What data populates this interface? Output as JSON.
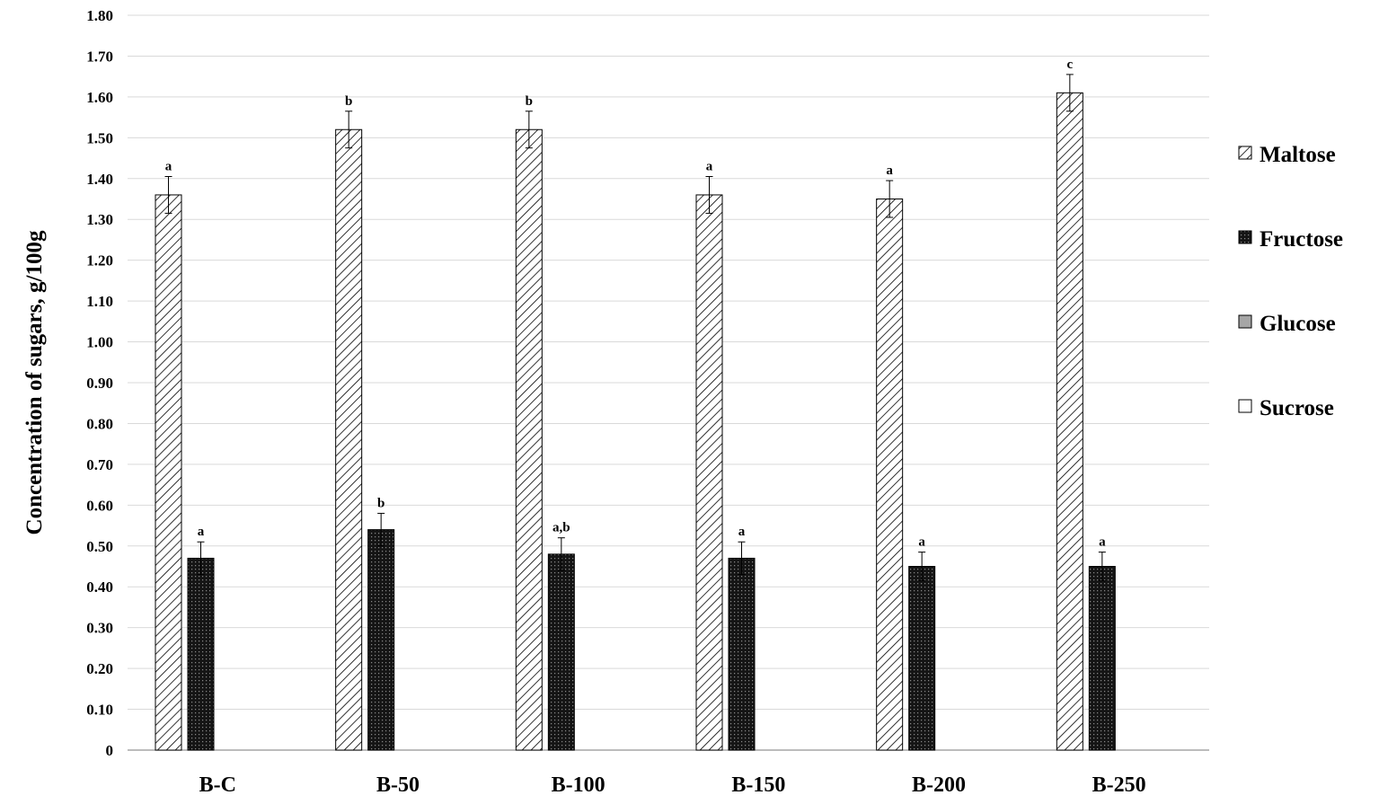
{
  "chart_data": {
    "type": "bar",
    "categories": [
      "B-C",
      "B-50",
      "B-100",
      "B-150",
      "B-200",
      "B-250"
    ],
    "series": [
      {
        "name": "Maltose",
        "pattern": "diagonal-hatch",
        "values": [
          1.36,
          1.52,
          1.52,
          1.36,
          1.35,
          1.61
        ],
        "errors": [
          0.045,
          0.045,
          0.045,
          0.045,
          0.045,
          0.045
        ],
        "labels": [
          "a",
          "b",
          "b",
          "a",
          "a",
          "c"
        ]
      },
      {
        "name": "Fructose",
        "pattern": "dark-dotted",
        "values": [
          0.47,
          0.54,
          0.48,
          0.47,
          0.45,
          0.45
        ],
        "errors": [
          0.04,
          0.04,
          0.04,
          0.04,
          0.035,
          0.035
        ],
        "labels": [
          "a",
          "b",
          "a,b",
          "a",
          "a",
          "a"
        ]
      },
      {
        "name": "Glucose",
        "pattern": "gray-fill",
        "values": [
          0,
          0,
          0,
          0,
          0,
          0
        ]
      },
      {
        "name": "Sucrose",
        "pattern": "white-fill",
        "values": [
          0,
          0,
          0,
          0,
          0,
          0
        ]
      }
    ],
    "ylabel": "Concentration  of sugars,  g/100g",
    "xlabel": "",
    "ylim": [
      0,
      1.8
    ],
    "yticks": [
      "0",
      "0.10",
      "0.20",
      "0.30",
      "0.40",
      "0.50",
      "0.60",
      "0.70",
      "0.80",
      "0.90",
      "1.00",
      "1.10",
      "1.20",
      "1.30",
      "1.40",
      "1.50",
      "1.60",
      "1.70",
      "1.80"
    ],
    "grid": true,
    "legend_position": "right",
    "colors": {
      "grid": "#d9d9d9",
      "axis": "#a6a6a6",
      "ink": "#000000",
      "glucose": "#a6a6a6",
      "fructose_bg": "#1a1a1a"
    }
  }
}
